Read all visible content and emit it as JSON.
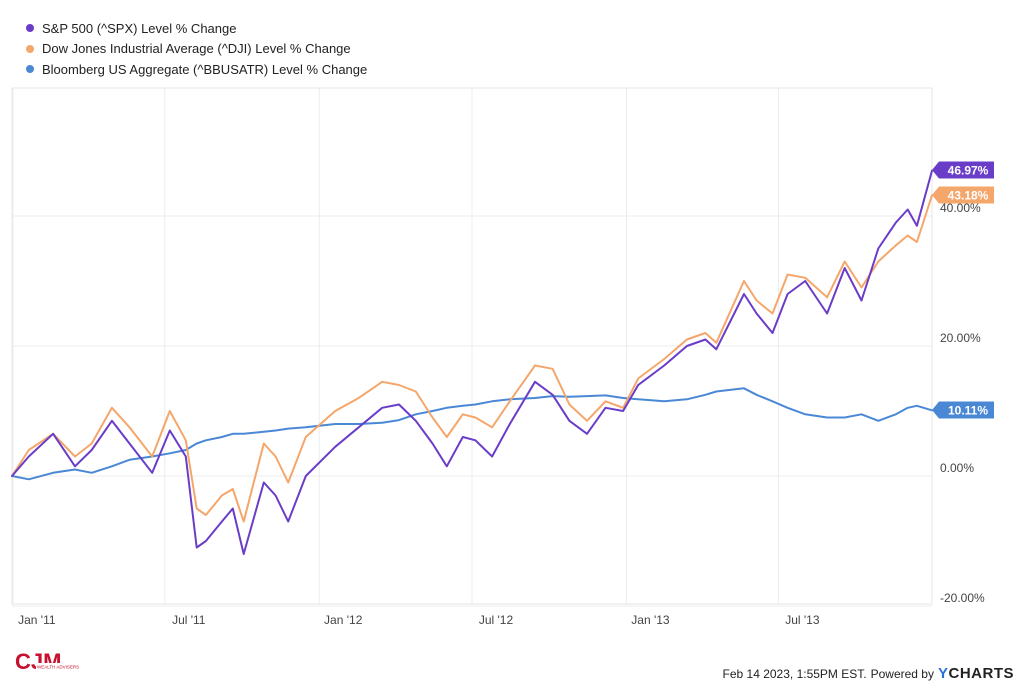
{
  "legend": [
    {
      "label": "S&P 500 (^SPX) Level % Change",
      "color": "#6a3dc8"
    },
    {
      "label": "Dow Jones Industrial Average (^DJI) Level % Change",
      "color": "#f5a66b"
    },
    {
      "label": "Bloomberg US Aggregate (^BBUSATR) Level % Change",
      "color": "#4a88d6"
    }
  ],
  "footer": {
    "timestamp": "Feb 14 2023, 1:55PM EST.",
    "powered_by": "Powered by",
    "brand_y": "Y",
    "brand_rest": "CHARTS"
  },
  "logo": {
    "text": "CJM",
    "sub": "WEALTH ADVISERS"
  },
  "chart_data": {
    "type": "line",
    "y_unit": "%",
    "ylim": [
      -20,
      55
    ],
    "y_ticks": [
      {
        "value": 40,
        "label": "40.00%"
      },
      {
        "value": 20,
        "label": "20.00%"
      },
      {
        "value": 0,
        "label": "0.00%"
      },
      {
        "value": -20,
        "label": "-20.00%"
      }
    ],
    "x_ticks": [
      {
        "date": "2011-01-01",
        "label": "Jan '11"
      },
      {
        "date": "2011-07-01",
        "label": "Jul '11"
      },
      {
        "date": "2012-01-01",
        "label": "Jan '12"
      },
      {
        "date": "2012-07-01",
        "label": "Jul '12"
      },
      {
        "date": "2013-01-01",
        "label": "Jan '13"
      },
      {
        "date": "2013-07-01",
        "label": "Jul '13"
      }
    ],
    "x_range": [
      "2010-12-31",
      "2013-12-31"
    ],
    "grid": true,
    "legend_position": "top-left",
    "series": [
      {
        "name": "S&P 500 (^SPX) Level % Change",
        "color": "#6a3dc8",
        "end_label": "46.97%",
        "points": [
          [
            "2010-12-31",
            0
          ],
          [
            "2011-01-20",
            3
          ],
          [
            "2011-02-18",
            6.5
          ],
          [
            "2011-03-16",
            1.5
          ],
          [
            "2011-04-05",
            4
          ],
          [
            "2011-04-29",
            8.5
          ],
          [
            "2011-05-20",
            5
          ],
          [
            "2011-06-16",
            0.5
          ],
          [
            "2011-07-07",
            7
          ],
          [
            "2011-07-26",
            3
          ],
          [
            "2011-08-08",
            -11
          ],
          [
            "2011-08-19",
            -10
          ],
          [
            "2011-09-07",
            -7
          ],
          [
            "2011-09-20",
            -5
          ],
          [
            "2011-10-03",
            -12
          ],
          [
            "2011-10-27",
            -1
          ],
          [
            "2011-11-10",
            -3
          ],
          [
            "2011-11-25",
            -7
          ],
          [
            "2011-12-16",
            0
          ],
          [
            "2012-01-20",
            4.5
          ],
          [
            "2012-02-17",
            7.5
          ],
          [
            "2012-03-16",
            10.5
          ],
          [
            "2012-04-05",
            11
          ],
          [
            "2012-04-25",
            8.5
          ],
          [
            "2012-05-15",
            5
          ],
          [
            "2012-06-01",
            1.5
          ],
          [
            "2012-06-20",
            6
          ],
          [
            "2012-07-05",
            5.5
          ],
          [
            "2012-07-25",
            3
          ],
          [
            "2012-08-15",
            8
          ],
          [
            "2012-09-14",
            14.5
          ],
          [
            "2012-10-05",
            12.5
          ],
          [
            "2012-10-25",
            8.5
          ],
          [
            "2012-11-15",
            6.5
          ],
          [
            "2012-12-07",
            10.5
          ],
          [
            "2012-12-28",
            10
          ],
          [
            "2013-01-15",
            14
          ],
          [
            "2013-02-15",
            17
          ],
          [
            "2013-03-14",
            20
          ],
          [
            "2013-04-05",
            21
          ],
          [
            "2013-04-18",
            19.5
          ],
          [
            "2013-05-21",
            28
          ],
          [
            "2013-06-05",
            25
          ],
          [
            "2013-06-24",
            22
          ],
          [
            "2013-07-12",
            28
          ],
          [
            "2013-08-02",
            30
          ],
          [
            "2013-08-28",
            25
          ],
          [
            "2013-09-18",
            32
          ],
          [
            "2013-10-08",
            27
          ],
          [
            "2013-10-28",
            35
          ],
          [
            "2013-11-18",
            39
          ],
          [
            "2013-12-02",
            41
          ],
          [
            "2013-12-13",
            38.5
          ],
          [
            "2013-12-31",
            46.97
          ]
        ]
      },
      {
        "name": "Dow Jones Industrial Average (^DJI) Level % Change",
        "color": "#f5a66b",
        "end_label": "43.18%",
        "points": [
          [
            "2010-12-31",
            0
          ],
          [
            "2011-01-20",
            4
          ],
          [
            "2011-02-18",
            6.5
          ],
          [
            "2011-03-16",
            3
          ],
          [
            "2011-04-05",
            5
          ],
          [
            "2011-04-29",
            10.5
          ],
          [
            "2011-05-20",
            7.5
          ],
          [
            "2011-06-16",
            3
          ],
          [
            "2011-07-07",
            10
          ],
          [
            "2011-07-26",
            5.5
          ],
          [
            "2011-08-08",
            -5
          ],
          [
            "2011-08-19",
            -6
          ],
          [
            "2011-09-07",
            -3
          ],
          [
            "2011-09-20",
            -2
          ],
          [
            "2011-10-03",
            -7
          ],
          [
            "2011-10-27",
            5
          ],
          [
            "2011-11-10",
            3
          ],
          [
            "2011-11-25",
            -1
          ],
          [
            "2011-12-16",
            6
          ],
          [
            "2012-01-20",
            10
          ],
          [
            "2012-02-17",
            12
          ],
          [
            "2012-03-16",
            14.5
          ],
          [
            "2012-04-05",
            14
          ],
          [
            "2012-04-25",
            13
          ],
          [
            "2012-05-15",
            9
          ],
          [
            "2012-06-01",
            6
          ],
          [
            "2012-06-20",
            9.5
          ],
          [
            "2012-07-05",
            9
          ],
          [
            "2012-07-25",
            7.5
          ],
          [
            "2012-08-15",
            11.5
          ],
          [
            "2012-09-14",
            17
          ],
          [
            "2012-10-05",
            16.5
          ],
          [
            "2012-10-25",
            11
          ],
          [
            "2012-11-15",
            8.5
          ],
          [
            "2012-12-07",
            11.5
          ],
          [
            "2012-12-28",
            10.5
          ],
          [
            "2013-01-15",
            15
          ],
          [
            "2013-02-15",
            18
          ],
          [
            "2013-03-14",
            21
          ],
          [
            "2013-04-05",
            22
          ],
          [
            "2013-04-18",
            20.5
          ],
          [
            "2013-05-21",
            30
          ],
          [
            "2013-06-05",
            27
          ],
          [
            "2013-06-24",
            25
          ],
          [
            "2013-07-12",
            31
          ],
          [
            "2013-08-02",
            30.5
          ],
          [
            "2013-08-28",
            27.5
          ],
          [
            "2013-09-18",
            33
          ],
          [
            "2013-10-08",
            29
          ],
          [
            "2013-10-28",
            33
          ],
          [
            "2013-11-18",
            35.5
          ],
          [
            "2013-12-02",
            37
          ],
          [
            "2013-12-13",
            36
          ],
          [
            "2013-12-31",
            43.18
          ]
        ]
      },
      {
        "name": "Bloomberg US Aggregate (^BBUSATR) Level % Change",
        "color": "#4a88d6",
        "end_label": "10.11%",
        "points": [
          [
            "2010-12-31",
            0
          ],
          [
            "2011-01-20",
            -0.5
          ],
          [
            "2011-02-18",
            0.5
          ],
          [
            "2011-03-16",
            1
          ],
          [
            "2011-04-05",
            0.5
          ],
          [
            "2011-04-29",
            1.5
          ],
          [
            "2011-05-20",
            2.5
          ],
          [
            "2011-06-16",
            3
          ],
          [
            "2011-07-07",
            3.5
          ],
          [
            "2011-07-26",
            4
          ],
          [
            "2011-08-08",
            5
          ],
          [
            "2011-08-19",
            5.5
          ],
          [
            "2011-09-07",
            6
          ],
          [
            "2011-09-20",
            6.5
          ],
          [
            "2011-10-03",
            6.5
          ],
          [
            "2011-10-27",
            6.8
          ],
          [
            "2011-11-10",
            7
          ],
          [
            "2011-11-25",
            7.3
          ],
          [
            "2011-12-16",
            7.5
          ],
          [
            "2012-01-20",
            8
          ],
          [
            "2012-02-17",
            8
          ],
          [
            "2012-03-16",
            8.2
          ],
          [
            "2012-04-05",
            8.6
          ],
          [
            "2012-04-25",
            9.5
          ],
          [
            "2012-05-15",
            10
          ],
          [
            "2012-06-01",
            10.5
          ],
          [
            "2012-06-20",
            10.8
          ],
          [
            "2012-07-05",
            11
          ],
          [
            "2012-07-25",
            11.5
          ],
          [
            "2012-08-15",
            11.8
          ],
          [
            "2012-09-14",
            12
          ],
          [
            "2012-10-05",
            12.3
          ],
          [
            "2012-10-25",
            12.2
          ],
          [
            "2012-11-15",
            12.3
          ],
          [
            "2012-12-07",
            12.4
          ],
          [
            "2012-12-28",
            12
          ],
          [
            "2013-01-15",
            11.8
          ],
          [
            "2013-02-15",
            11.5
          ],
          [
            "2013-03-14",
            11.8
          ],
          [
            "2013-04-05",
            12.5
          ],
          [
            "2013-04-18",
            13
          ],
          [
            "2013-05-21",
            13.5
          ],
          [
            "2013-06-05",
            12.5
          ],
          [
            "2013-06-24",
            11.5
          ],
          [
            "2013-07-12",
            10.5
          ],
          [
            "2013-08-02",
            9.5
          ],
          [
            "2013-08-28",
            9
          ],
          [
            "2013-09-18",
            9
          ],
          [
            "2013-10-08",
            9.5
          ],
          [
            "2013-10-28",
            8.5
          ],
          [
            "2013-11-18",
            9.5
          ],
          [
            "2013-12-02",
            10.5
          ],
          [
            "2013-12-13",
            10.8
          ],
          [
            "2013-12-31",
            10.11
          ]
        ]
      }
    ]
  }
}
